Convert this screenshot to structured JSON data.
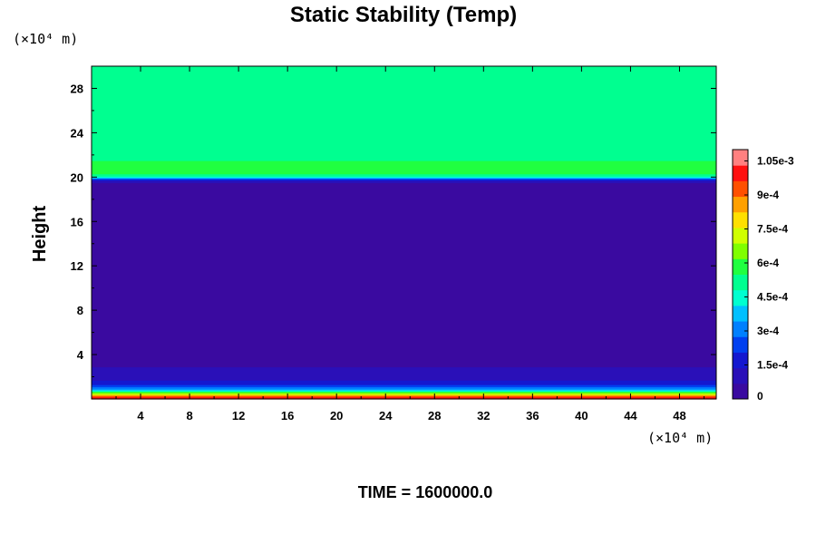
{
  "chart_data": {
    "type": "heatmap",
    "title": "Static Stability (Temp)",
    "ylabel": "Height",
    "xlabel": "",
    "x_unit_label": "(×10⁴ m)",
    "y_unit_label": "(×10⁴ m)",
    "xlim": [
      0,
      51
    ],
    "ylim": [
      0,
      30
    ],
    "x_ticks": [
      4,
      8,
      12,
      16,
      20,
      24,
      28,
      32,
      36,
      40,
      44,
      48
    ],
    "y_ticks": [
      4,
      8,
      12,
      16,
      20,
      24,
      28
    ],
    "colorbar": {
      "min": 0,
      "max": 0.0011,
      "ticks": [
        {
          "value": 0,
          "label": "0"
        },
        {
          "value": 0.00015,
          "label": "1.5e-4"
        },
        {
          "value": 0.0003,
          "label": "3e-4"
        },
        {
          "value": 0.00045,
          "label": "4.5e-4"
        },
        {
          "value": 0.0006,
          "label": "6e-4"
        },
        {
          "value": 0.00075,
          "label": "7.5e-4"
        },
        {
          "value": 0.0009,
          "label": "9e-4"
        },
        {
          "value": 0.00105,
          "label": "1.05e-3"
        }
      ],
      "colors": [
        "#3a0aa0",
        "#2a10b8",
        "#1418d0",
        "#0040f0",
        "#0080ff",
        "#00c0ff",
        "#00ffd0",
        "#00ff90",
        "#20ff40",
        "#80ff00",
        "#d0ff00",
        "#ffe000",
        "#ffa000",
        "#ff5000",
        "#ff1010",
        "#ff8080"
      ]
    },
    "vertical_profile": [
      {
        "height": 0.0,
        "value": 0.00105
      },
      {
        "height": 0.3,
        "value": 0.0009
      },
      {
        "height": 0.6,
        "value": 0.0006
      },
      {
        "height": 0.9,
        "value": 0.00035
      },
      {
        "height": 1.3,
        "value": 0.0002
      },
      {
        "height": 1.8,
        "value": 0.00012
      },
      {
        "height": 2.4,
        "value": 8e-05
      },
      {
        "height": 3.2,
        "value": 6e-05
      },
      {
        "height": 4.5,
        "value": 4e-05
      },
      {
        "height": 8.0,
        "value": 2e-05
      },
      {
        "height": 12.0,
        "value": 2e-05
      },
      {
        "height": 16.0,
        "value": 4e-05
      },
      {
        "height": 19.5,
        "value": 5e-05
      },
      {
        "height": 19.8,
        "value": 0.0002
      },
      {
        "height": 20.0,
        "value": 0.00045
      },
      {
        "height": 20.4,
        "value": 0.0006
      },
      {
        "height": 21.5,
        "value": 0.00055
      },
      {
        "height": 23.0,
        "value": 0.0005
      },
      {
        "height": 30.0,
        "value": 0.0005
      }
    ],
    "footer": "TIME = 1600000.0"
  }
}
